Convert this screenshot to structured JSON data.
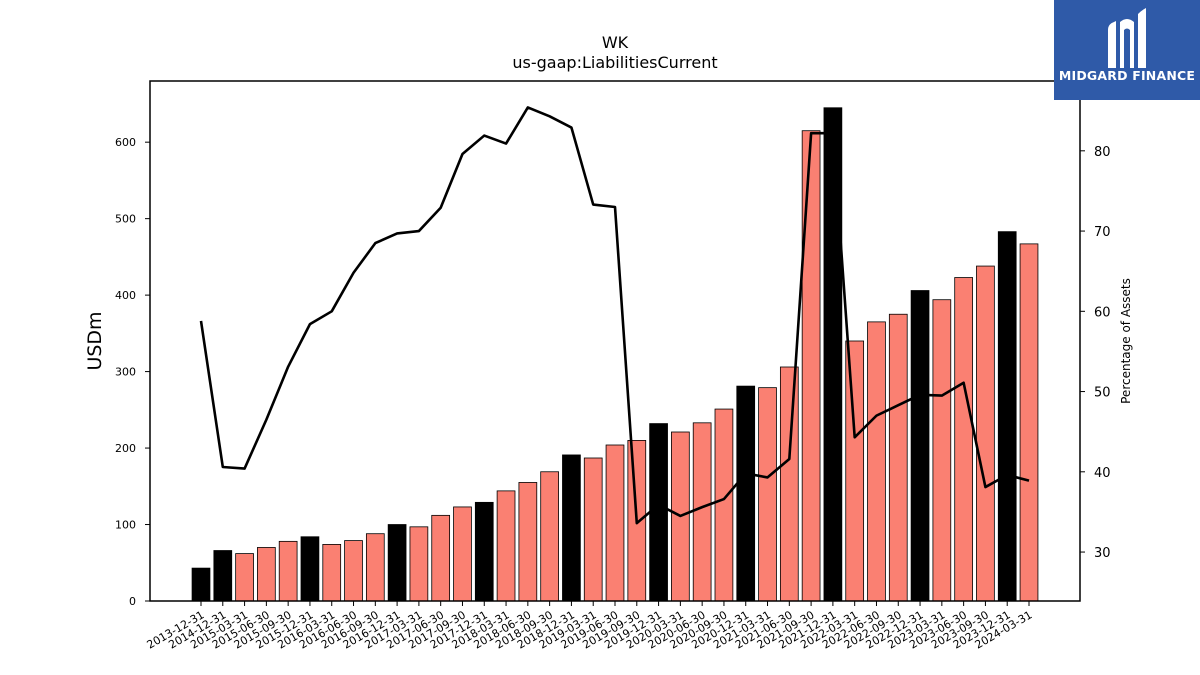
{
  "chart_data": {
    "type": "bar",
    "title": "WK",
    "subtitle": "us-gaap:LiabilitiesCurrent",
    "ylabel": "USDm",
    "y2label": "Percentage of Assets",
    "ylim": [
      0,
      680
    ],
    "y2lim": [
      23.9,
      88.7
    ],
    "yticks": [
      0,
      100,
      200,
      300,
      400,
      500,
      600
    ],
    "y2ticks": [
      30,
      40,
      50,
      60,
      70,
      80
    ],
    "categories": [
      "2013-12-31",
      "2014-12-31",
      "2015-03-31",
      "2015-06-30",
      "2015-09-30",
      "2015-12-31",
      "2016-03-31",
      "2016-06-30",
      "2016-09-30",
      "2016-12-31",
      "2017-03-31",
      "2017-06-30",
      "2017-09-30",
      "2017-12-31",
      "2018-03-31",
      "2018-06-30",
      "2018-09-30",
      "2018-12-31",
      "2019-03-31",
      "2019-06-30",
      "2019-09-30",
      "2019-12-31",
      "2020-03-31",
      "2020-06-30",
      "2020-09-30",
      "2020-12-31",
      "2021-03-31",
      "2021-06-30",
      "2021-09-30",
      "2021-12-31",
      "2022-03-31",
      "2022-06-30",
      "2022-09-30",
      "2022-12-31",
      "2023-03-31",
      "2023-06-30",
      "2023-09-30",
      "2023-12-31",
      "2024-03-31"
    ],
    "series": [
      {
        "type": "bar",
        "values": [
          43,
          66,
          62,
          70,
          78,
          84,
          74,
          79,
          88,
          100,
          97,
          112,
          123,
          129,
          144,
          155,
          169,
          191,
          187,
          204,
          210,
          232,
          221,
          233,
          251,
          281,
          279,
          306,
          615,
          645,
          340,
          365,
          375,
          406,
          394,
          423,
          438,
          483,
          467
        ],
        "colors": [
          "#000000",
          "#000000",
          "#fa8072",
          "#fa8072",
          "#fa8072",
          "#000000",
          "#fa8072",
          "#fa8072",
          "#fa8072",
          "#000000",
          "#fa8072",
          "#fa8072",
          "#fa8072",
          "#000000",
          "#fa8072",
          "#fa8072",
          "#fa8072",
          "#000000",
          "#fa8072",
          "#fa8072",
          "#fa8072",
          "#000000",
          "#fa8072",
          "#fa8072",
          "#fa8072",
          "#000000",
          "#fa8072",
          "#fa8072",
          "#fa8072",
          "#000000",
          "#fa8072",
          "#fa8072",
          "#fa8072",
          "#000000",
          "#fa8072",
          "#fa8072",
          "#fa8072",
          "#000000",
          "#fa8072"
        ]
      },
      {
        "type": "line",
        "axis": "right",
        "color": "#000000",
        "values": [
          58.8,
          40.6,
          40.4,
          46.5,
          53.1,
          58.4,
          60.0,
          64.8,
          68.5,
          69.7,
          70.0,
          72.9,
          79.6,
          81.9,
          80.9,
          85.4,
          84.3,
          82.9,
          73.3,
          73.0,
          33.6,
          35.9,
          34.5,
          35.6,
          36.6,
          39.8,
          39.3,
          41.6,
          82.2,
          82.2,
          44.3,
          47.0,
          48.3,
          49.6,
          49.5,
          51.1,
          38.1,
          39.6,
          38.9
        ]
      }
    ],
    "grid": false,
    "legend": "none"
  },
  "logo": {
    "name": "MIDGARD FINANCE",
    "color": "#2f5aa8"
  }
}
